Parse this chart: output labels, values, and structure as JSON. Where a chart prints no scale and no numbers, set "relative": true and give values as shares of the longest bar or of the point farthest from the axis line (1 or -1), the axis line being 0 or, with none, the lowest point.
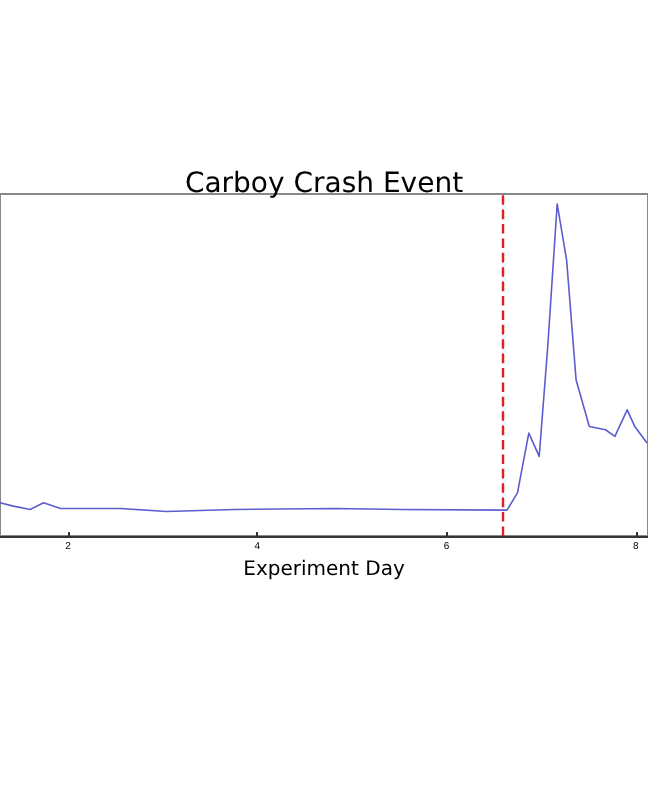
{
  "chart_data": {
    "type": "line",
    "title": "Carboy Crash Event",
    "xlabel": "Experiment Day",
    "relative": true,
    "xlim": [
      1.28,
      8.13
    ],
    "xticks": [
      2,
      4,
      6,
      8
    ],
    "marker": "none",
    "line_style": "solid",
    "series": [
      {
        "color": "#5c5cd0",
        "x": [
          1.28,
          1.42,
          1.6,
          1.74,
          1.92,
          2.55,
          3.04,
          3.76,
          4.82,
          5.52,
          6.64,
          6.75,
          6.87,
          6.98,
          7.07,
          7.17,
          7.27,
          7.37,
          7.51,
          7.68,
          7.78,
          7.91,
          7.99,
          8.12
        ],
        "values": [
          0.1,
          0.09,
          0.08,
          0.1,
          0.083,
          0.083,
          0.074,
          0.08,
          0.083,
          0.08,
          0.078,
          0.13,
          0.31,
          0.24,
          0.57,
          1.0,
          0.83,
          0.47,
          0.33,
          0.32,
          0.3,
          0.38,
          0.33,
          0.28
        ]
      }
    ],
    "ref_lines": [
      {
        "axis": "x",
        "value": 6.6,
        "color": "#e02020",
        "line_style": "dashed"
      }
    ]
  }
}
